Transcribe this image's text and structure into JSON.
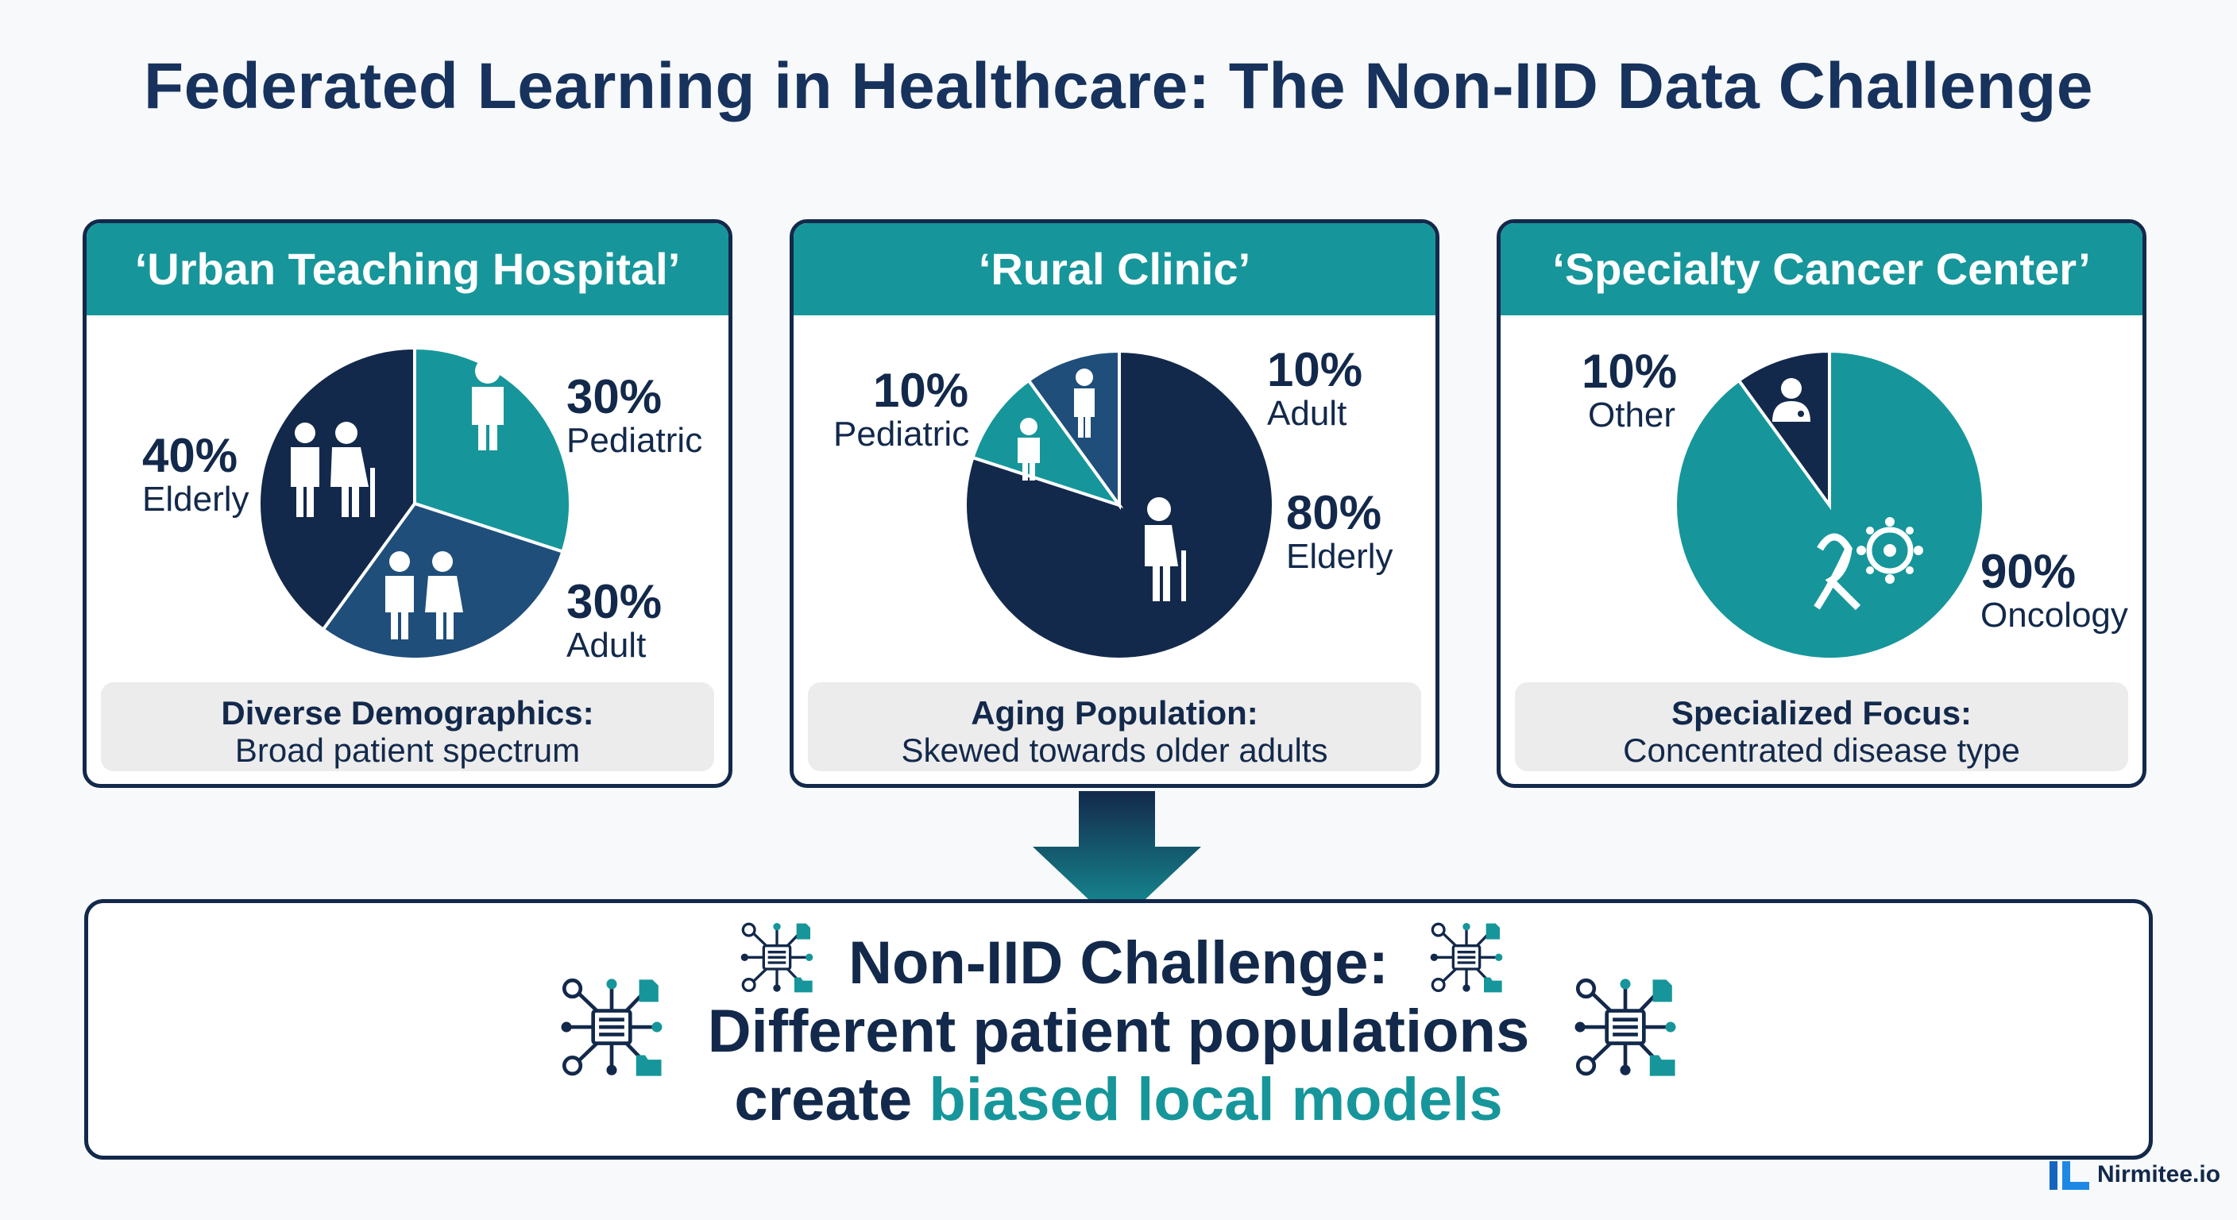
{
  "title": "Federated Learning in Healthcare: The Non-IID Data Challenge",
  "colors": {
    "navy": "#13294b",
    "teal": "#16969a",
    "mid_blue": "#1f4e7b",
    "caption_bg": "#ececec"
  },
  "chart_data": [
    {
      "type": "pie",
      "title": "‘Urban Teaching Hospital’",
      "slices": [
        {
          "label": "Pediatric",
          "value": 30,
          "display": "30%",
          "color": "#16969a",
          "icon": "child-icon"
        },
        {
          "label": "Adult",
          "value": 30,
          "display": "30%",
          "color": "#1f4e7b",
          "icon": "adult-couple-icon"
        },
        {
          "label": "Elderly",
          "value": 40,
          "display": "40%",
          "color": "#13294b",
          "icon": "elderly-couple-icon"
        }
      ],
      "caption_title": "Diverse Demographics:",
      "caption_sub": "Broad patient spectrum"
    },
    {
      "type": "pie",
      "title": "‘Rural Clinic’",
      "slices": [
        {
          "label": "Elderly",
          "value": 80,
          "display": "80%",
          "color": "#13294b",
          "icon": "elderly-person-icon"
        },
        {
          "label": "Pediatric",
          "value": 10,
          "display": "10%",
          "color": "#16969a",
          "icon": "child-icon"
        },
        {
          "label": "Adult",
          "value": 10,
          "display": "10%",
          "color": "#1f4e7b",
          "icon": "adult-icon"
        }
      ],
      "caption_title": "Aging Population:",
      "caption_sub": "Skewed towards older adults"
    },
    {
      "type": "pie",
      "title": "‘Specialty Cancer Center’",
      "slices": [
        {
          "label": "Oncology",
          "value": 90,
          "display": "90%",
          "color": "#16969a",
          "icon": "cancer-ribbon-icon"
        },
        {
          "label": "Other",
          "value": 10,
          "display": "10%",
          "color": "#13294b",
          "icon": "doctor-icon"
        }
      ],
      "caption_title": "Specialized Focus:",
      "caption_sub": "Concentrated disease type"
    }
  ],
  "bottom": {
    "line1": "Non-IID Challenge:",
    "line2": "Different patient populations",
    "line3_plain": "create ",
    "line3_accent": "biased local models",
    "icon": "server-network-icon"
  },
  "brand": "Nirmitee.io"
}
